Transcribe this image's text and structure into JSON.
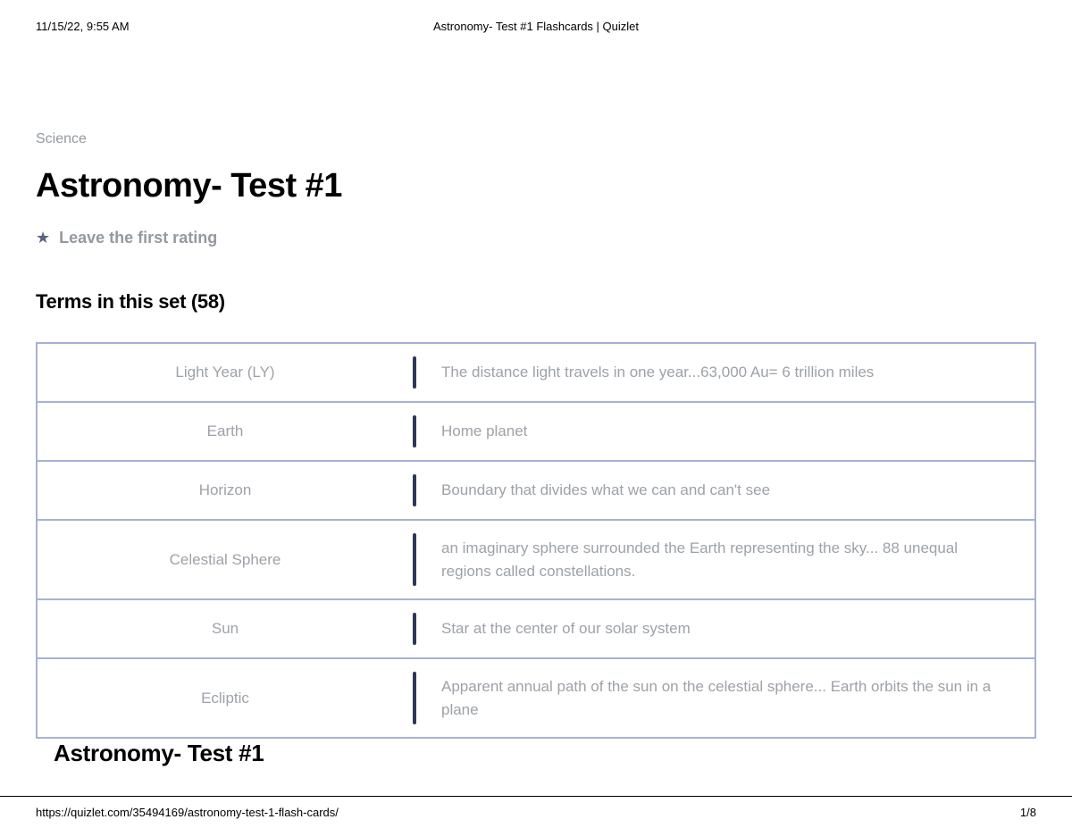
{
  "print": {
    "timestamp": "11/15/22, 9:55 AM",
    "title": "Astronomy- Test #1 Flashcards | Quizlet",
    "url": "https://quizlet.com/35494169/astronomy-test-1-flash-cards/",
    "page": "1/8"
  },
  "breadcrumb": "Science",
  "title": "Astronomy- Test #1",
  "rating_text": "Leave the first rating",
  "terms_heading": "Terms in this set (58)",
  "footer_title": "Astronomy- Test #1",
  "colors": {
    "border": "#a7b1d6",
    "divider": "#2e3856",
    "muted_text": "#9da2a8",
    "breadcrumb": "#93999f",
    "title": "#000000",
    "background": "#ffffff"
  },
  "layout": {
    "term_col_width": 420,
    "divider_width": 4,
    "row_min_height": 66,
    "title_fontsize": 38,
    "terms_heading_fontsize": 22,
    "cell_fontsize": 17
  },
  "terms": [
    {
      "term": "Light Year (LY)",
      "def": "The distance light travels in one year...63,000 Au= 6 trillion miles"
    },
    {
      "term": "Earth",
      "def": "Home planet"
    },
    {
      "term": "Horizon",
      "def": "Boundary that divides what we can and can't see"
    },
    {
      "term": "Celestial Sphere",
      "def": "an imaginary sphere surrounded the Earth representing the sky... 88 unequal regions called constellations."
    },
    {
      "term": "Sun",
      "def": "Star at the center of our solar system"
    },
    {
      "term": "Ecliptic",
      "def": "Apparent annual path of the sun on the celestial sphere... Earth orbits the sun in a plane"
    }
  ]
}
